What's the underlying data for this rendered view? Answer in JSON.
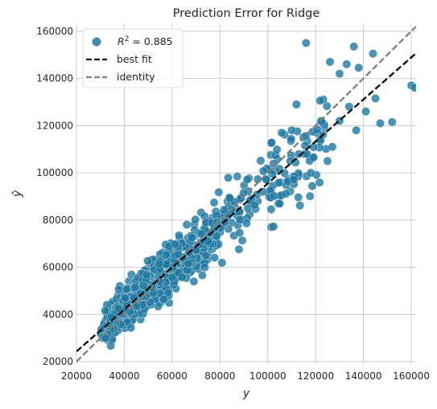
{
  "chart_data": {
    "type": "scatter",
    "title": "Prediction Error for Ridge",
    "xlabel": "y",
    "ylabel": "ŷ",
    "xlim": [
      20000,
      162000
    ],
    "ylim": [
      19000,
      163000
    ],
    "xticks": [
      20000,
      40000,
      60000,
      80000,
      100000,
      120000,
      140000,
      160000
    ],
    "yticks": [
      20000,
      40000,
      60000,
      80000,
      100000,
      120000,
      140000,
      160000
    ],
    "grid": true,
    "legend_position": "top-left",
    "colors": {
      "points": "#1f78a0",
      "best_fit": "#111111",
      "identity": "#808080",
      "grid": "#cccccc"
    },
    "legend": {
      "r2_label": "R",
      "r2_sup": "2",
      "r2_value": " = 0.885",
      "best_fit_label": "best fit",
      "identity_label": "identity"
    },
    "best_fit": {
      "slope": 0.89,
      "intercept": 6500
    },
    "identity": {
      "slope": 1,
      "intercept": 0
    },
    "point_generation": {
      "n": 900,
      "x_min": 22000,
      "x_max": 162000
    },
    "outliers": [
      [
        116000,
        155000
      ],
      [
        136000,
        153500
      ],
      [
        144000,
        150500
      ],
      [
        126000,
        147000
      ],
      [
        133000,
        146000
      ],
      [
        138000,
        144500
      ],
      [
        130000,
        142000
      ],
      [
        160000,
        137000
      ],
      [
        161500,
        136000
      ],
      [
        145000,
        131500
      ],
      [
        141000,
        126000
      ],
      [
        152000,
        121500
      ],
      [
        147000,
        121000
      ],
      [
        134000,
        128000
      ],
      [
        130000,
        122000
      ],
      [
        137000,
        118000
      ],
      [
        127000,
        111000
      ],
      [
        125000,
        105000
      ],
      [
        112000,
        129000
      ],
      [
        110000,
        118000
      ],
      [
        122000,
        114000
      ],
      [
        118000,
        100000
      ],
      [
        105000,
        87000
      ],
      [
        98000,
        92000
      ]
    ]
  }
}
